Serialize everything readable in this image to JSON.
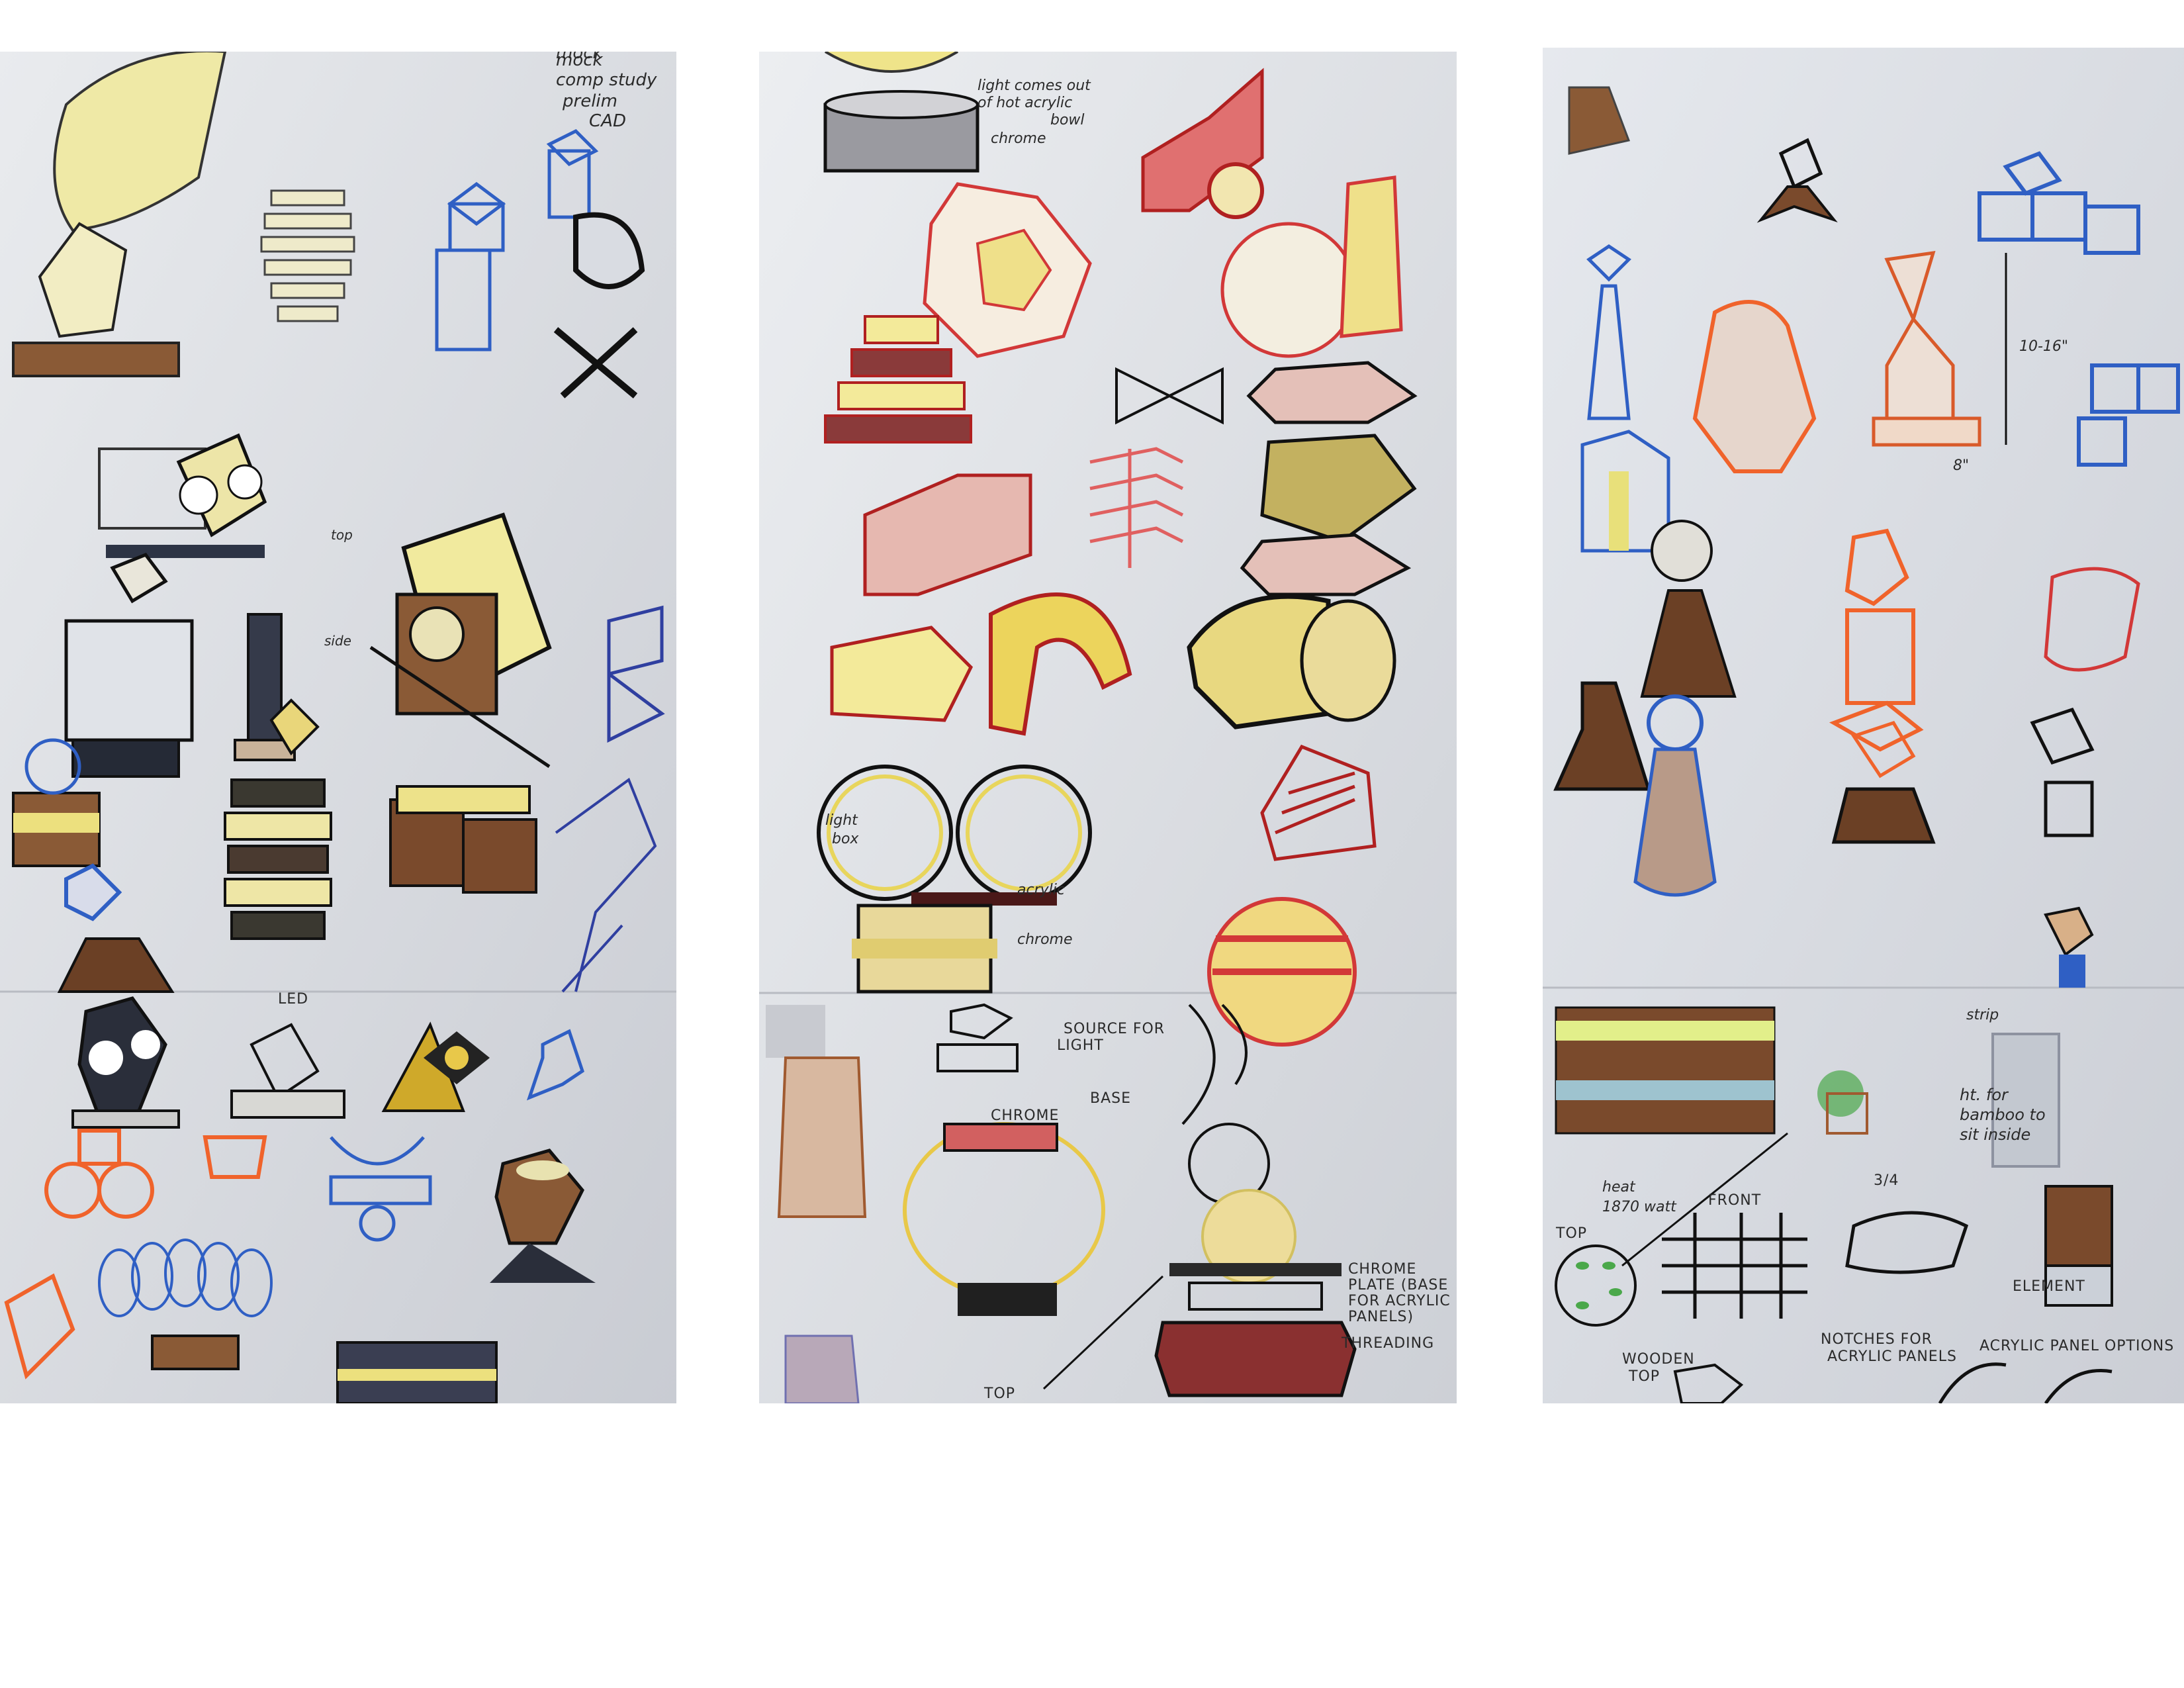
{
  "panels": [
    {
      "id": "left-sheet",
      "notes": [
        "mock",
        "comp study",
        "prelim",
        "CAD",
        "top",
        "side",
        "LED"
      ]
    },
    {
      "id": "middle-sheet",
      "notes": [
        "light comes out",
        "of hot acrylic",
        "bowl",
        "chrome",
        "light",
        "box",
        "acrylic",
        "chrome",
        "SOURCE FOR",
        "LIGHT",
        "BASE",
        "CHROME",
        "CHROME",
        "PLATE (BASE",
        "FOR ACRYLIC",
        "PANELS)",
        "THREADING",
        "TOP"
      ]
    },
    {
      "id": "right-sheet",
      "notes": [
        "10-16\"",
        "8\"",
        "strip",
        "ht. for",
        "bamboo to",
        "sit inside",
        "heat",
        "1870 watt",
        "TOP",
        "FRONT",
        "3/4",
        "ELEMENT",
        "WOODEN",
        "TOP",
        "NOTCHES FOR",
        "ACRYLIC PANELS",
        "ACRYLIC PANEL OPTIONS"
      ]
    }
  ],
  "colors": {
    "paper": "#d9dce2",
    "pencil_black": "#1e1e1e",
    "pencil_blue": "#2f5fc4",
    "pencil_red": "#d23838",
    "pencil_orange": "#f0632b",
    "pencil_yellow": "#e8dd6a",
    "pencil_brown": "#7a4a2c"
  }
}
